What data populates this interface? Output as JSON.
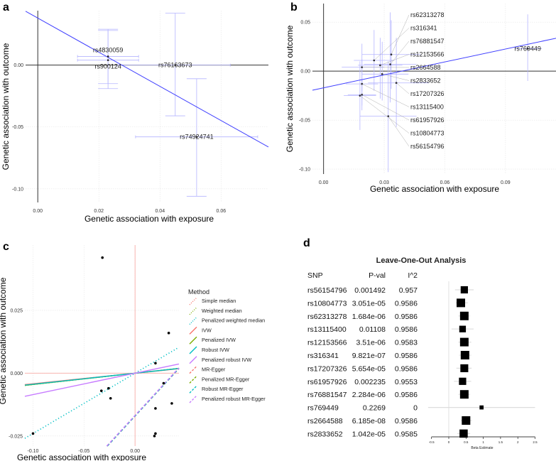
{
  "chart_data": [
    {
      "panel": "a",
      "type": "scatter",
      "xlabel": "Genetic association with exposure",
      "ylabel": "Genetic association with outcome",
      "xlim": [
        -0.004,
        0.0755
      ],
      "ylim": [
        -0.111,
        0.044
      ],
      "xticks": [
        "0.00",
        "0.02",
        "0.04",
        "0.06"
      ],
      "xtick_values": [
        0,
        0.02,
        0.04,
        0.06
      ],
      "yticks": [
        "0.00",
        "-0.05",
        "-0.10"
      ],
      "ytick_values": [
        0,
        -0.05,
        -0.1
      ],
      "line": {
        "intercept": 0.038,
        "slope": -1.38,
        "color": "#4040ff"
      },
      "points": [
        {
          "snp": "rs4830059",
          "x": 0.023,
          "y": 0.007,
          "xlo": 0.013,
          "xhi": 0.033,
          "ylo": -0.015,
          "yhi": 0.029
        },
        {
          "snp": "rs900124",
          "x": 0.023,
          "y": 0.004,
          "xlo": 0.013,
          "xhi": 0.033,
          "ylo": -0.019,
          "yhi": 0.028
        },
        {
          "snp": "rs76163673",
          "x": 0.045,
          "y": 0.0,
          "xlo": 0.026,
          "xhi": 0.063,
          "ylo": -0.041,
          "yhi": 0.042
        },
        {
          "snp": "rs74924741",
          "x": 0.052,
          "y": -0.058,
          "xlo": 0.032,
          "xhi": 0.072,
          "ylo": -0.106,
          "yhi": -0.011
        }
      ]
    },
    {
      "panel": "b",
      "type": "scatter",
      "xlabel": "Genetic association with exposure",
      "ylabel": "Genetic association with outcome",
      "xlim": [
        -0.0055,
        0.115
      ],
      "ylim": [
        -0.105,
        0.069
      ],
      "xticks": [
        "0.00",
        "0.03",
        "0.06",
        "0.09"
      ],
      "xtick_values": [
        0,
        0.03,
        0.06,
        0.09
      ],
      "yticks": [
        "0.05",
        "0.00",
        "-0.05",
        "-0.10"
      ],
      "ytick_values": [
        0.05,
        0,
        -0.05,
        -0.1
      ],
      "line": {
        "intercept": -0.017,
        "slope": 0.44,
        "color": "#4040ff"
      },
      "points": [
        {
          "snp": "rs62313278",
          "x": 0.0335,
          "y": 0.017,
          "xlo": 0.019,
          "xhi": 0.048,
          "ylo": -0.018,
          "yhi": 0.052
        },
        {
          "snp": "rs316341",
          "x": 0.025,
          "y": 0.011,
          "xlo": 0.015,
          "xhi": 0.035,
          "ylo": -0.02,
          "yhi": 0.042
        },
        {
          "snp": "rs76881547",
          "x": 0.033,
          "y": 0.007,
          "xlo": 0.02,
          "xhi": 0.046,
          "ylo": -0.032,
          "yhi": 0.06
        },
        {
          "snp": "rs12153566",
          "x": 0.028,
          "y": 0.006,
          "xlo": 0.017,
          "xhi": 0.039,
          "ylo": -0.028,
          "yhi": 0.034
        },
        {
          "snp": "rs2664588",
          "x": 0.019,
          "y": 0.004,
          "xlo": 0.009,
          "xhi": 0.03,
          "ylo": -0.02,
          "yhi": 0.028
        },
        {
          "snp": "rs2833652",
          "x": 0.029,
          "y": -0.003,
          "xlo": 0.019,
          "xhi": 0.042,
          "ylo": -0.03,
          "yhi": 0.03
        },
        {
          "snp": "rs13115400",
          "x": 0.019,
          "y": -0.013,
          "xlo": 0.011,
          "xhi": 0.027,
          "ylo": -0.035,
          "yhi": 0.012
        },
        {
          "snp": "rs17207326",
          "x": 0.036,
          "y": -0.012,
          "xlo": 0.022,
          "xhi": 0.052,
          "ylo": -0.057,
          "yhi": 0.034
        },
        {
          "snp": "rs61957926",
          "x": 0.019,
          "y": -0.024,
          "xlo": 0.012,
          "xhi": 0.026,
          "ylo": -0.04,
          "yhi": -0.008
        },
        {
          "snp": "rs10804773",
          "x": 0.018,
          "y": -0.025,
          "xlo": 0.01,
          "xhi": 0.026,
          "ylo": -0.06,
          "yhi": 0.01
        },
        {
          "snp": "rs56154796",
          "x": 0.032,
          "y": -0.046,
          "xlo": 0.018,
          "xhi": 0.046,
          "ylo": -0.103,
          "yhi": 0.01
        },
        {
          "snp": "rs769449",
          "x": 0.101,
          "y": 0.023,
          "xlo": 0.095,
          "xhi": 0.108,
          "ylo": -0.01,
          "yhi": 0.058
        }
      ]
    },
    {
      "panel": "c",
      "type": "scatter",
      "xlabel": "Genetic association with exposure",
      "ylabel": "Genetic association with outcome",
      "xlim": [
        -0.108,
        0.043
      ],
      "ylim": [
        -0.029,
        0.051
      ],
      "xticks": [
        "-0.10",
        "-0.05",
        "0.00"
      ],
      "xtick_values": [
        -0.1,
        -0.05,
        0
      ],
      "yticks": [
        "0.025",
        "0.000",
        "-0.025"
      ],
      "ytick_values": [
        0.025,
        0,
        -0.025
      ],
      "legend": {
        "title": "Method",
        "placement": "right"
      },
      "methods": [
        {
          "name": "Simple median",
          "color": "#f8766d",
          "dash": "dot",
          "intercept": 0,
          "slope": 0.043
        },
        {
          "name": "Weighted median",
          "color": "#7cae00",
          "dash": "dot",
          "intercept": 0,
          "slope": 0.045
        },
        {
          "name": "Penalized weighted median",
          "color": "#00bfc4",
          "dash": "dot",
          "intercept": 0,
          "slope": 0.24
        },
        {
          "name": "IVW",
          "color": "#f8766d",
          "dash": "solid",
          "intercept": 0,
          "slope": 0.042
        },
        {
          "name": "Penalized IVW",
          "color": "#7cae00",
          "dash": "solid",
          "intercept": 0,
          "slope": 0.045
        },
        {
          "name": "Robust IVW",
          "color": "#00bfc4",
          "dash": "solid",
          "intercept": 0,
          "slope": 0.044
        },
        {
          "name": "Penalized robust IVW",
          "color": "#c77cff",
          "dash": "solid",
          "intercept": 0,
          "slope": 0.085
        },
        {
          "name": "MR-Egger",
          "color": "#f8766d",
          "dash": "dash",
          "intercept": -0.017,
          "slope": 0.44
        },
        {
          "name": "Penalized MR-Egger",
          "color": "#7cae00",
          "dash": "dash",
          "intercept": -0.017,
          "slope": 0.44
        },
        {
          "name": "Robust MR-Egger",
          "color": "#00bfc4",
          "dash": "dash",
          "intercept": -0.017,
          "slope": 0.44
        },
        {
          "name": "Penalized robust MR-Egger",
          "color": "#c77cff",
          "dash": "dash",
          "intercept": -0.0168,
          "slope": 0.44
        }
      ],
      "points": [
        {
          "x": -0.032,
          "y": 0.046
        },
        {
          "x": 0.033,
          "y": 0.016
        },
        {
          "x": 0.02,
          "y": 0.004
        },
        {
          "x": 0.028,
          "y": -0.004
        },
        {
          "x": -0.033,
          "y": -0.007
        },
        {
          "x": -0.026,
          "y": -0.006
        },
        {
          "x": -0.024,
          "y": -0.01
        },
        {
          "x": 0.02,
          "y": -0.014
        },
        {
          "x": 0.036,
          "y": -0.012
        },
        {
          "x": 0.02,
          "y": -0.024
        },
        {
          "x": 0.019,
          "y": -0.025
        },
        {
          "x": -0.1,
          "y": -0.024
        }
      ]
    },
    {
      "panel": "d",
      "type": "table",
      "title": "Leave-One-Out Analysis",
      "columns": [
        "SNP",
        "P-val",
        "I^2"
      ],
      "xlabel": "Beta Estimate",
      "xlim": [
        -0.5,
        2.5
      ],
      "xticks": [
        "-0.5",
        "0",
        "0.5",
        "1",
        "1.5",
        "2",
        "2.5"
      ],
      "xtick_values": [
        -0.5,
        0,
        0.5,
        1,
        1.5,
        2,
        2.5
      ],
      "rows": [
        {
          "snp": "rs56154796",
          "pval": "0.001492",
          "i2": "0.957",
          "beta": 0.45,
          "lo": 0.18,
          "hi": 0.72,
          "weight": 0.8
        },
        {
          "snp": "rs10804773",
          "pval": "3.051e-05",
          "i2": "0.9586",
          "beta": 0.35,
          "lo": 0.2,
          "hi": 0.55,
          "weight": 1.0
        },
        {
          "snp": "rs62313278",
          "pval": "1.684e-06",
          "i2": "0.9586",
          "beta": 0.45,
          "lo": 0.28,
          "hi": 0.62,
          "weight": 1.0
        },
        {
          "snp": "rs13115400",
          "pval": "0.01108",
          "i2": "0.9586",
          "beta": 0.4,
          "lo": 0.08,
          "hi": 0.72,
          "weight": 0.7
        },
        {
          "snp": "rs12153566",
          "pval": "3.51e-06",
          "i2": "0.9583",
          "beta": 0.45,
          "lo": 0.28,
          "hi": 0.65,
          "weight": 1.0
        },
        {
          "snp": "rs316341",
          "pval": "9.821e-07",
          "i2": "0.9586",
          "beta": 0.47,
          "lo": 0.3,
          "hi": 0.65,
          "weight": 1.0
        },
        {
          "snp": "rs17207326",
          "pval": "5.654e-05",
          "i2": "0.9586",
          "beta": 0.45,
          "lo": 0.22,
          "hi": 0.66,
          "weight": 0.9
        },
        {
          "snp": "rs61957926",
          "pval": "0.002235",
          "i2": "0.9553",
          "beta": 0.4,
          "lo": 0.15,
          "hi": 0.65,
          "weight": 0.8
        },
        {
          "snp": "rs76881547",
          "pval": "2.284e-06",
          "i2": "0.9586",
          "beta": 0.45,
          "lo": 0.28,
          "hi": 0.62,
          "weight": 1.0
        },
        {
          "snp": "rs769449",
          "pval": "0.2269",
          "i2": "0",
          "beta": 0.95,
          "lo": -0.6,
          "hi": 2.5,
          "weight": 0.3
        },
        {
          "snp": "rs2664588",
          "pval": "6.185e-08",
          "i2": "0.9586",
          "beta": 0.5,
          "lo": 0.35,
          "hi": 0.67,
          "weight": 1.0
        },
        {
          "snp": "rs2833652",
          "pval": "1.042e-05",
          "i2": "0.9585",
          "beta": 0.43,
          "lo": 0.25,
          "hi": 0.62,
          "weight": 0.95
        }
      ]
    }
  ],
  "panel_labels": [
    "a",
    "b",
    "c",
    "d"
  ]
}
